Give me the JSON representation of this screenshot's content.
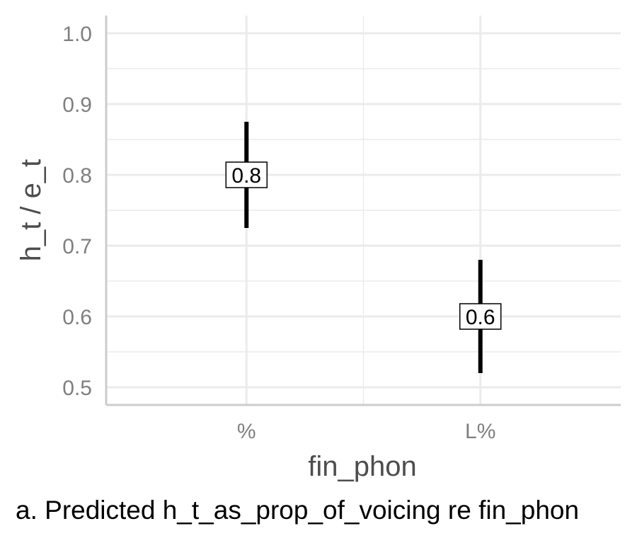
{
  "chart_data": {
    "type": "errorbar",
    "categories": [
      "%",
      "L%"
    ],
    "points": [
      {
        "x": "%",
        "y": 0.8,
        "lower": 0.725,
        "upper": 0.875,
        "label": "0.8"
      },
      {
        "x": "L%",
        "y": 0.6,
        "lower": 0.52,
        "upper": 0.68,
        "label": "0.6"
      }
    ],
    "xlabel": "fin_phon",
    "ylabel": "h_t / e_t",
    "ylim": [
      0.475,
      1.025
    ],
    "yticks": [
      0.5,
      0.6,
      0.7,
      0.8,
      0.9,
      1.0
    ],
    "ytick_labels": [
      "0.5",
      "0.6",
      "0.7",
      "0.8",
      "0.9",
      "1.0"
    ],
    "grid": true,
    "colors": {
      "grid": "#ebebeb",
      "axis": "#cccccc",
      "errorbar": "#000000",
      "tick_text": "#7f7f7f",
      "title_text": "#4d4d4d"
    }
  },
  "caption": "a. Predicted h_t_as_prop_of_voicing re fin_phon"
}
